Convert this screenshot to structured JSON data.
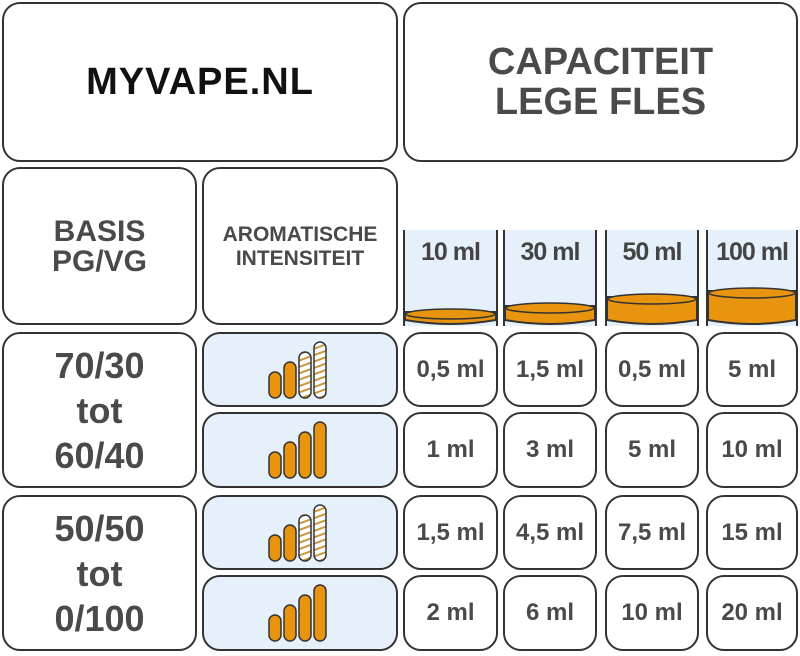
{
  "brand": "MYVAPE.NL",
  "capacity_title": [
    "CAPACITEIT",
    "LEGE FLES"
  ],
  "basis_header": [
    "BASIS",
    "PG/VG"
  ],
  "intensity_header": [
    "AROMATISCHE",
    "INTENSITEIT"
  ],
  "bottles": [
    {
      "label": "10 ml",
      "fill_level": 0.1
    },
    {
      "label": "30 ml",
      "fill_level": 0.2
    },
    {
      "label": "50 ml",
      "fill_level": 0.35
    },
    {
      "label": "100 ml",
      "fill_level": 0.45
    }
  ],
  "groups": [
    {
      "ratio": [
        "70/30",
        "tot",
        "60/40"
      ]
    },
    {
      "ratio": [
        "50/50",
        "tot",
        "0/100"
      ]
    }
  ],
  "rows": [
    {
      "intensity_filled": 2,
      "intensity_total": 4,
      "values": [
        "0,5 ml",
        "1,5 ml",
        "0,5 ml",
        "5 ml"
      ]
    },
    {
      "intensity_filled": 4,
      "intensity_total": 4,
      "values": [
        "1 ml",
        "3 ml",
        "5 ml",
        "10 ml"
      ]
    },
    {
      "intensity_filled": 2,
      "intensity_total": 4,
      "values": [
        "1,5 ml",
        "4,5 ml",
        "7,5 ml",
        "15 ml"
      ]
    },
    {
      "intensity_filled": 4,
      "intensity_total": 4,
      "values": [
        "2 ml",
        "6 ml",
        "10 ml",
        "20 ml"
      ]
    }
  ],
  "colors": {
    "liquid": "#e8940f",
    "cell_blue": "#e6f0fb",
    "text": "#4a4a4a"
  }
}
